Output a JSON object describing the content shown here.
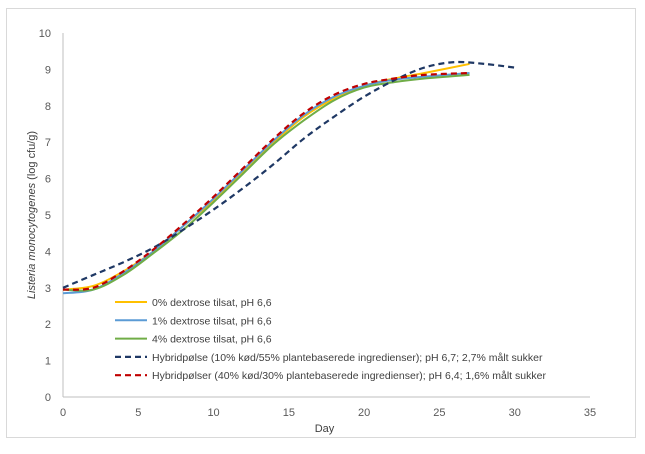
{
  "chart_data": {
    "type": "line",
    "title": "",
    "xlabel": "Day",
    "ylabel": "Listeria monocytogenes (log cfu/g)",
    "ylabel_italic_part": "Listeria monocytogenes",
    "ylabel_rest": " (log cfu/g)",
    "xlim": [
      0,
      35
    ],
    "ylim": [
      0,
      10
    ],
    "x_ticks": [
      "0",
      "5",
      "10",
      "15",
      "20",
      "25",
      "30",
      "35"
    ],
    "y_ticks": [
      "0",
      "1",
      "2",
      "3",
      "4",
      "5",
      "6",
      "7",
      "8",
      "9",
      "10"
    ],
    "grid": false,
    "legend_position": "inside-bottom-center",
    "series": [
      {
        "name": "0% dextrose tilsat, pH 6,6",
        "color": "#FFC000",
        "dash": "solid",
        "x": [
          0,
          2,
          4,
          6,
          8,
          10,
          12,
          14,
          16,
          18,
          20,
          22,
          24,
          27
        ],
        "y": [
          2.95,
          3.05,
          3.45,
          4.0,
          4.7,
          5.4,
          6.2,
          7.0,
          7.7,
          8.2,
          8.55,
          8.75,
          8.9,
          9.15
        ]
      },
      {
        "name": "1% dextrose tilsat, pH 6,6",
        "color": "#5B9BD5",
        "dash": "solid",
        "x": [
          0,
          2,
          4,
          6,
          8,
          10,
          12,
          14,
          16,
          18,
          20,
          22,
          24,
          27
        ],
        "y": [
          2.85,
          2.95,
          3.4,
          4.0,
          4.7,
          5.45,
          6.25,
          7.05,
          7.75,
          8.25,
          8.55,
          8.72,
          8.8,
          8.9
        ]
      },
      {
        "name": "4% dextrose tilsat, pH 6,6",
        "color": "#70AD47",
        "dash": "solid",
        "x": [
          0,
          2,
          4,
          6,
          8,
          10,
          12,
          14,
          16,
          18,
          20,
          22,
          24,
          27
        ],
        "y": [
          2.95,
          2.95,
          3.35,
          3.95,
          4.6,
          5.35,
          6.15,
          6.95,
          7.6,
          8.15,
          8.5,
          8.65,
          8.75,
          8.85
        ]
      },
      {
        "name": "Hybridpølse (10% kød/55% plantebaserede ingredienser); pH 6,7; 2,7% målt sukker",
        "color": "#1F3864",
        "dash": "dashed",
        "x": [
          0,
          2,
          4,
          6,
          8,
          10,
          12,
          14,
          16,
          18,
          20,
          22,
          24,
          26,
          28,
          30
        ],
        "y": [
          3.0,
          3.35,
          3.7,
          4.1,
          4.6,
          5.15,
          5.75,
          6.4,
          7.1,
          7.7,
          8.25,
          8.7,
          9.05,
          9.2,
          9.15,
          9.05
        ]
      },
      {
        "name": "Hybridpølser (40% kød/30% plantebaserede ingredienser); pH 6,4; 1,6% målt sukker",
        "color": "#C00000",
        "dash": "dashed",
        "x": [
          0,
          2,
          4,
          6,
          8,
          10,
          12,
          14,
          16,
          18,
          20,
          22,
          24,
          27
        ],
        "y": [
          2.95,
          3.0,
          3.45,
          4.05,
          4.75,
          5.5,
          6.3,
          7.1,
          7.8,
          8.3,
          8.6,
          8.75,
          8.85,
          8.9
        ]
      }
    ]
  }
}
